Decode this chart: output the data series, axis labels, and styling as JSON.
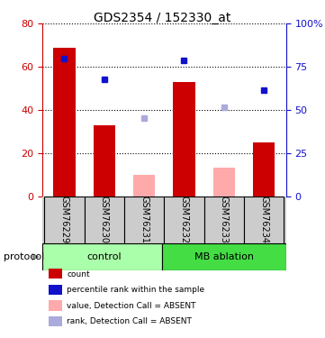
{
  "title": "GDS2354 / 152330_at",
  "samples": [
    "GSM76229",
    "GSM76230",
    "GSM76231",
    "GSM76232",
    "GSM76233",
    "GSM76234"
  ],
  "count_values": [
    69,
    33,
    null,
    53,
    null,
    25
  ],
  "count_absent": [
    null,
    null,
    10,
    null,
    13,
    null
  ],
  "rank_values": [
    64,
    54,
    null,
    63,
    null,
    49
  ],
  "rank_absent": [
    null,
    null,
    36,
    null,
    41,
    null
  ],
  "bar_color_present": "#cc0000",
  "bar_color_absent": "#ffaaaa",
  "marker_color_present": "#1111cc",
  "marker_color_absent": "#aaaadd",
  "left_ylim": [
    0,
    80
  ],
  "right_ylim": [
    0,
    100
  ],
  "left_yticks": [
    0,
    20,
    40,
    60,
    80
  ],
  "right_yticks": [
    0,
    25,
    50,
    75,
    100
  ],
  "right_yticklabels": [
    "0",
    "25",
    "50",
    "75",
    "100%"
  ],
  "left_ytick_color": "#cc0000",
  "right_ytick_color": "#1111cc",
  "color_control": "#aaffaa",
  "color_mb": "#44dd44",
  "figsize": [
    3.61,
    3.75
  ],
  "dpi": 100,
  "bar_width": 0.55,
  "marker_size": 5,
  "legend_labels": [
    "count",
    "percentile rank within the sample",
    "value, Detection Call = ABSENT",
    "rank, Detection Call = ABSENT"
  ]
}
